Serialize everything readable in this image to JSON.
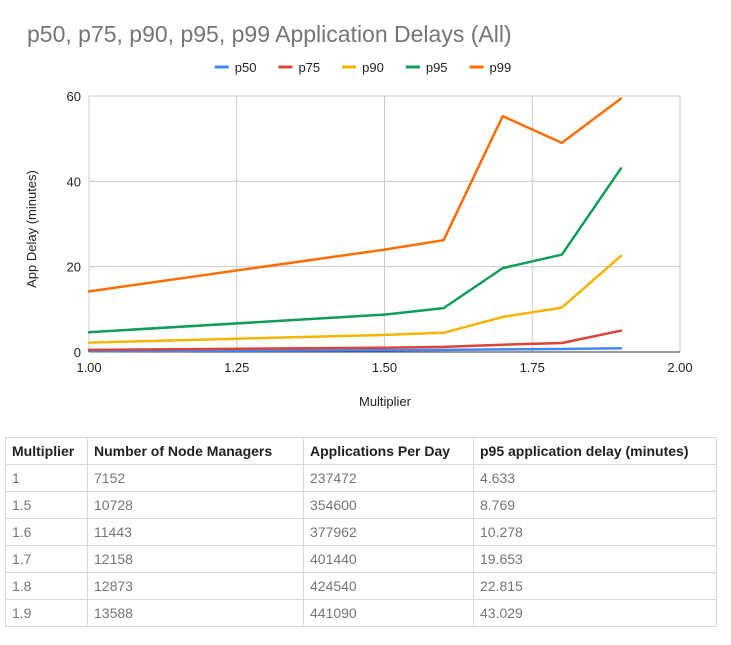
{
  "chart_data": {
    "type": "line",
    "title": "p50, p75, p90, p95, p99 Application Delays (All)",
    "xlabel": "Multiplier",
    "ylabel": "App Delay (minutes)",
    "xlim": [
      1.0,
      2.0
    ],
    "ylim": [
      0,
      60
    ],
    "x_ticks": [
      "1.00",
      "1.25",
      "1.50",
      "1.75",
      "2.00"
    ],
    "y_ticks": [
      "0",
      "20",
      "40",
      "60"
    ],
    "grid": true,
    "legend_position": "top",
    "x": [
      1.0,
      1.5,
      1.6,
      1.7,
      1.8,
      1.9
    ],
    "series": [
      {
        "name": "p50",
        "color": "#4285f4",
        "values": [
          0.2,
          0.4,
          0.5,
          0.6,
          0.7,
          0.9
        ]
      },
      {
        "name": "p75",
        "color": "#db4437",
        "values": [
          0.5,
          1.0,
          1.2,
          1.7,
          2.1,
          5.0
        ]
      },
      {
        "name": "p90",
        "color": "#f4b400",
        "values": [
          2.2,
          4.0,
          4.5,
          8.2,
          10.4,
          22.5
        ]
      },
      {
        "name": "p95",
        "color": "#0f9d58",
        "values": [
          4.633,
          8.769,
          10.278,
          19.653,
          22.815,
          43.029
        ]
      },
      {
        "name": "p99",
        "color": "#ff6d01",
        "values": [
          14.2,
          24.0,
          26.2,
          55.3,
          49.0,
          59.4
        ]
      }
    ]
  },
  "table": {
    "headers": [
      "Multiplier",
      "Number of Node Managers",
      "Applications Per Day",
      "p95 application delay (minutes)"
    ],
    "rows": [
      [
        "1",
        "7152",
        "237472",
        "4.633"
      ],
      [
        "1.5",
        "10728",
        "354600",
        "8.769"
      ],
      [
        "1.6",
        "11443",
        "377962",
        "10.278"
      ],
      [
        "1.7",
        "12158",
        "401440",
        "19.653"
      ],
      [
        "1.8",
        "12873",
        "424540",
        "22.815"
      ],
      [
        "1.9",
        "13588",
        "441090",
        "43.029"
      ]
    ]
  }
}
